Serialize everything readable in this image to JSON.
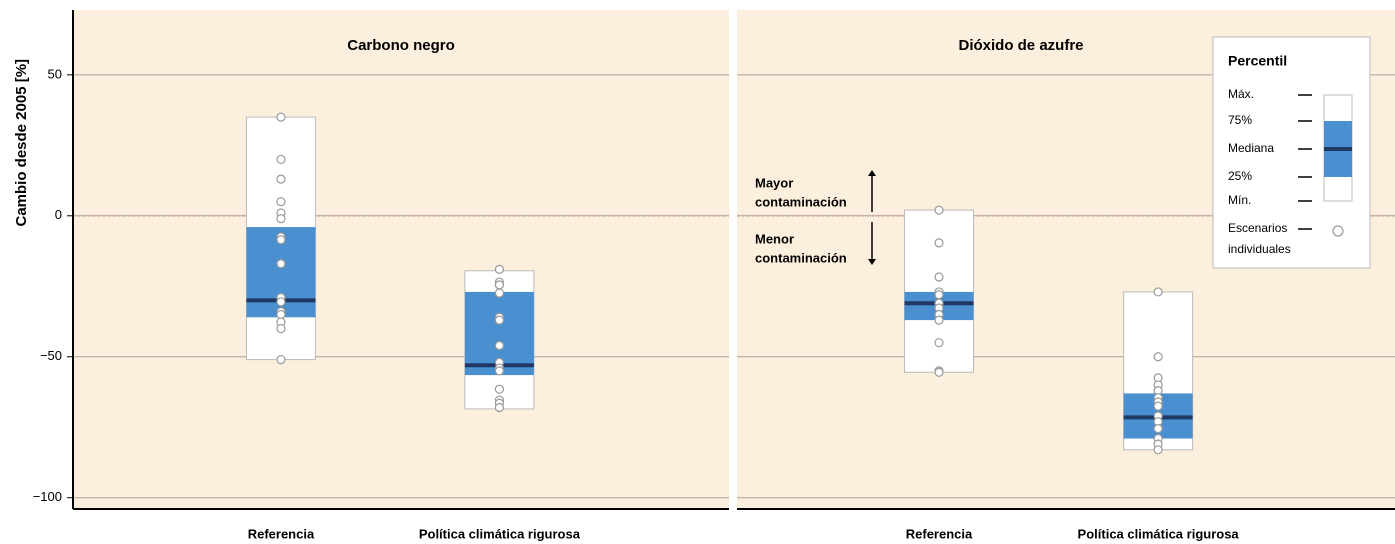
{
  "chart_data": {
    "type": "box",
    "ylabel": "Cambio desde 2005 [%]",
    "ylim": [
      -104,
      73
    ],
    "yticks": [
      50,
      0,
      {
        "value": -50,
        "label": "−50"
      },
      {
        "value": -100,
        "label": "−100"
      }
    ],
    "grid": true,
    "zero_line": 0,
    "box_color": "#4a8fd0",
    "median_color": "#1f3864",
    "panels": [
      {
        "title": "Carbono negro",
        "categories": [
          "Referencia",
          "Política climática rigurosa"
        ],
        "boxes": [
          {
            "min": -51,
            "q1": -36,
            "median": -30,
            "q3": -4,
            "max": 35,
            "points": [
              35,
              20,
              13,
              5,
              1,
              -1,
              -7.5,
              -8.5,
              -17,
              -29,
              -30.5,
              -34,
              -35,
              -37.7,
              -40,
              -51
            ]
          },
          {
            "min": -68.5,
            "q1": -56.5,
            "median": -53,
            "q3": -27,
            "max": -19.5,
            "points": [
              -19,
              -23.5,
              -24.5,
              -27.4,
              -36,
              -37,
              -46,
              -52,
              -54,
              -55,
              -61.5,
              -65.4,
              -66.5,
              -68
            ]
          }
        ]
      },
      {
        "title": "Dióxido de azufre",
        "categories": [
          "Referencia",
          "Política climática rigurosa"
        ],
        "boxes": [
          {
            "min": -55.5,
            "q1": -37,
            "median": -31,
            "q3": -27,
            "max": 2,
            "points": [
              2,
              -9.6,
              -21.7,
              -27,
              -28,
              -31,
              -32.7,
              -35,
              -37,
              -45,
              -55,
              -55.5
            ]
          },
          {
            "min": -83,
            "q1": -79,
            "median": -71.5,
            "q3": -63,
            "max": -27,
            "points": [
              -27,
              -50,
              -57.5,
              -60,
              -62,
              -64.5,
              -66,
              -67.5,
              -71,
              -73,
              -75.5,
              -79,
              -81,
              -83
            ]
          }
        ]
      }
    ],
    "annotations": [
      {
        "lines": [
          "Mayor",
          "contaminación"
        ]
      },
      {
        "lines": [
          "Menor",
          "contaminación"
        ]
      }
    ],
    "legend": {
      "title": "Percentil",
      "items": [
        "Máx.",
        "75%",
        "Mediana",
        "25%",
        "Mín."
      ],
      "points_label": [
        "Escenarios",
        "individuales"
      ]
    }
  }
}
